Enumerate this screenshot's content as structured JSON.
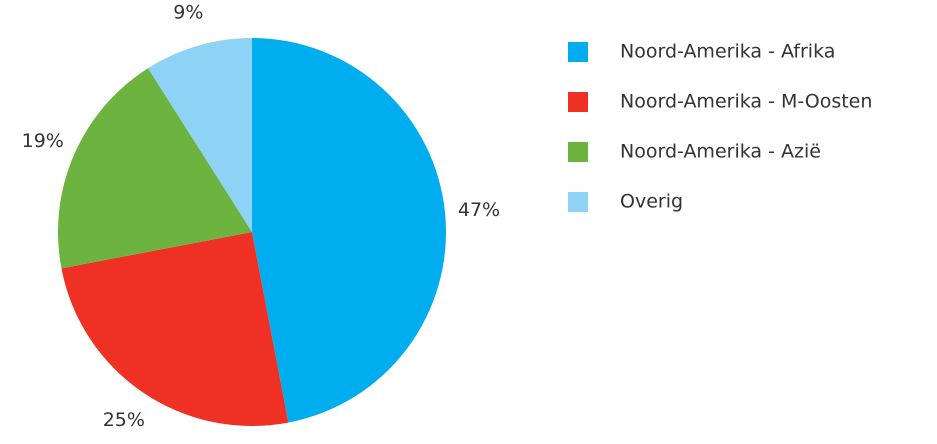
{
  "chart_data": {
    "type": "pie",
    "categories": [
      "Noord-Amerika - Afrika",
      "Noord-Amerika - M-Oosten",
      "Noord-Amerika - Azië",
      "Overig"
    ],
    "values": [
      47,
      25,
      19,
      9
    ],
    "value_labels": [
      "47%",
      "25%",
      "19%",
      "9%"
    ],
    "colors": [
      "#00aeef",
      "#ee3124",
      "#6db33f",
      "#8ed3f5"
    ],
    "legend": "right"
  }
}
